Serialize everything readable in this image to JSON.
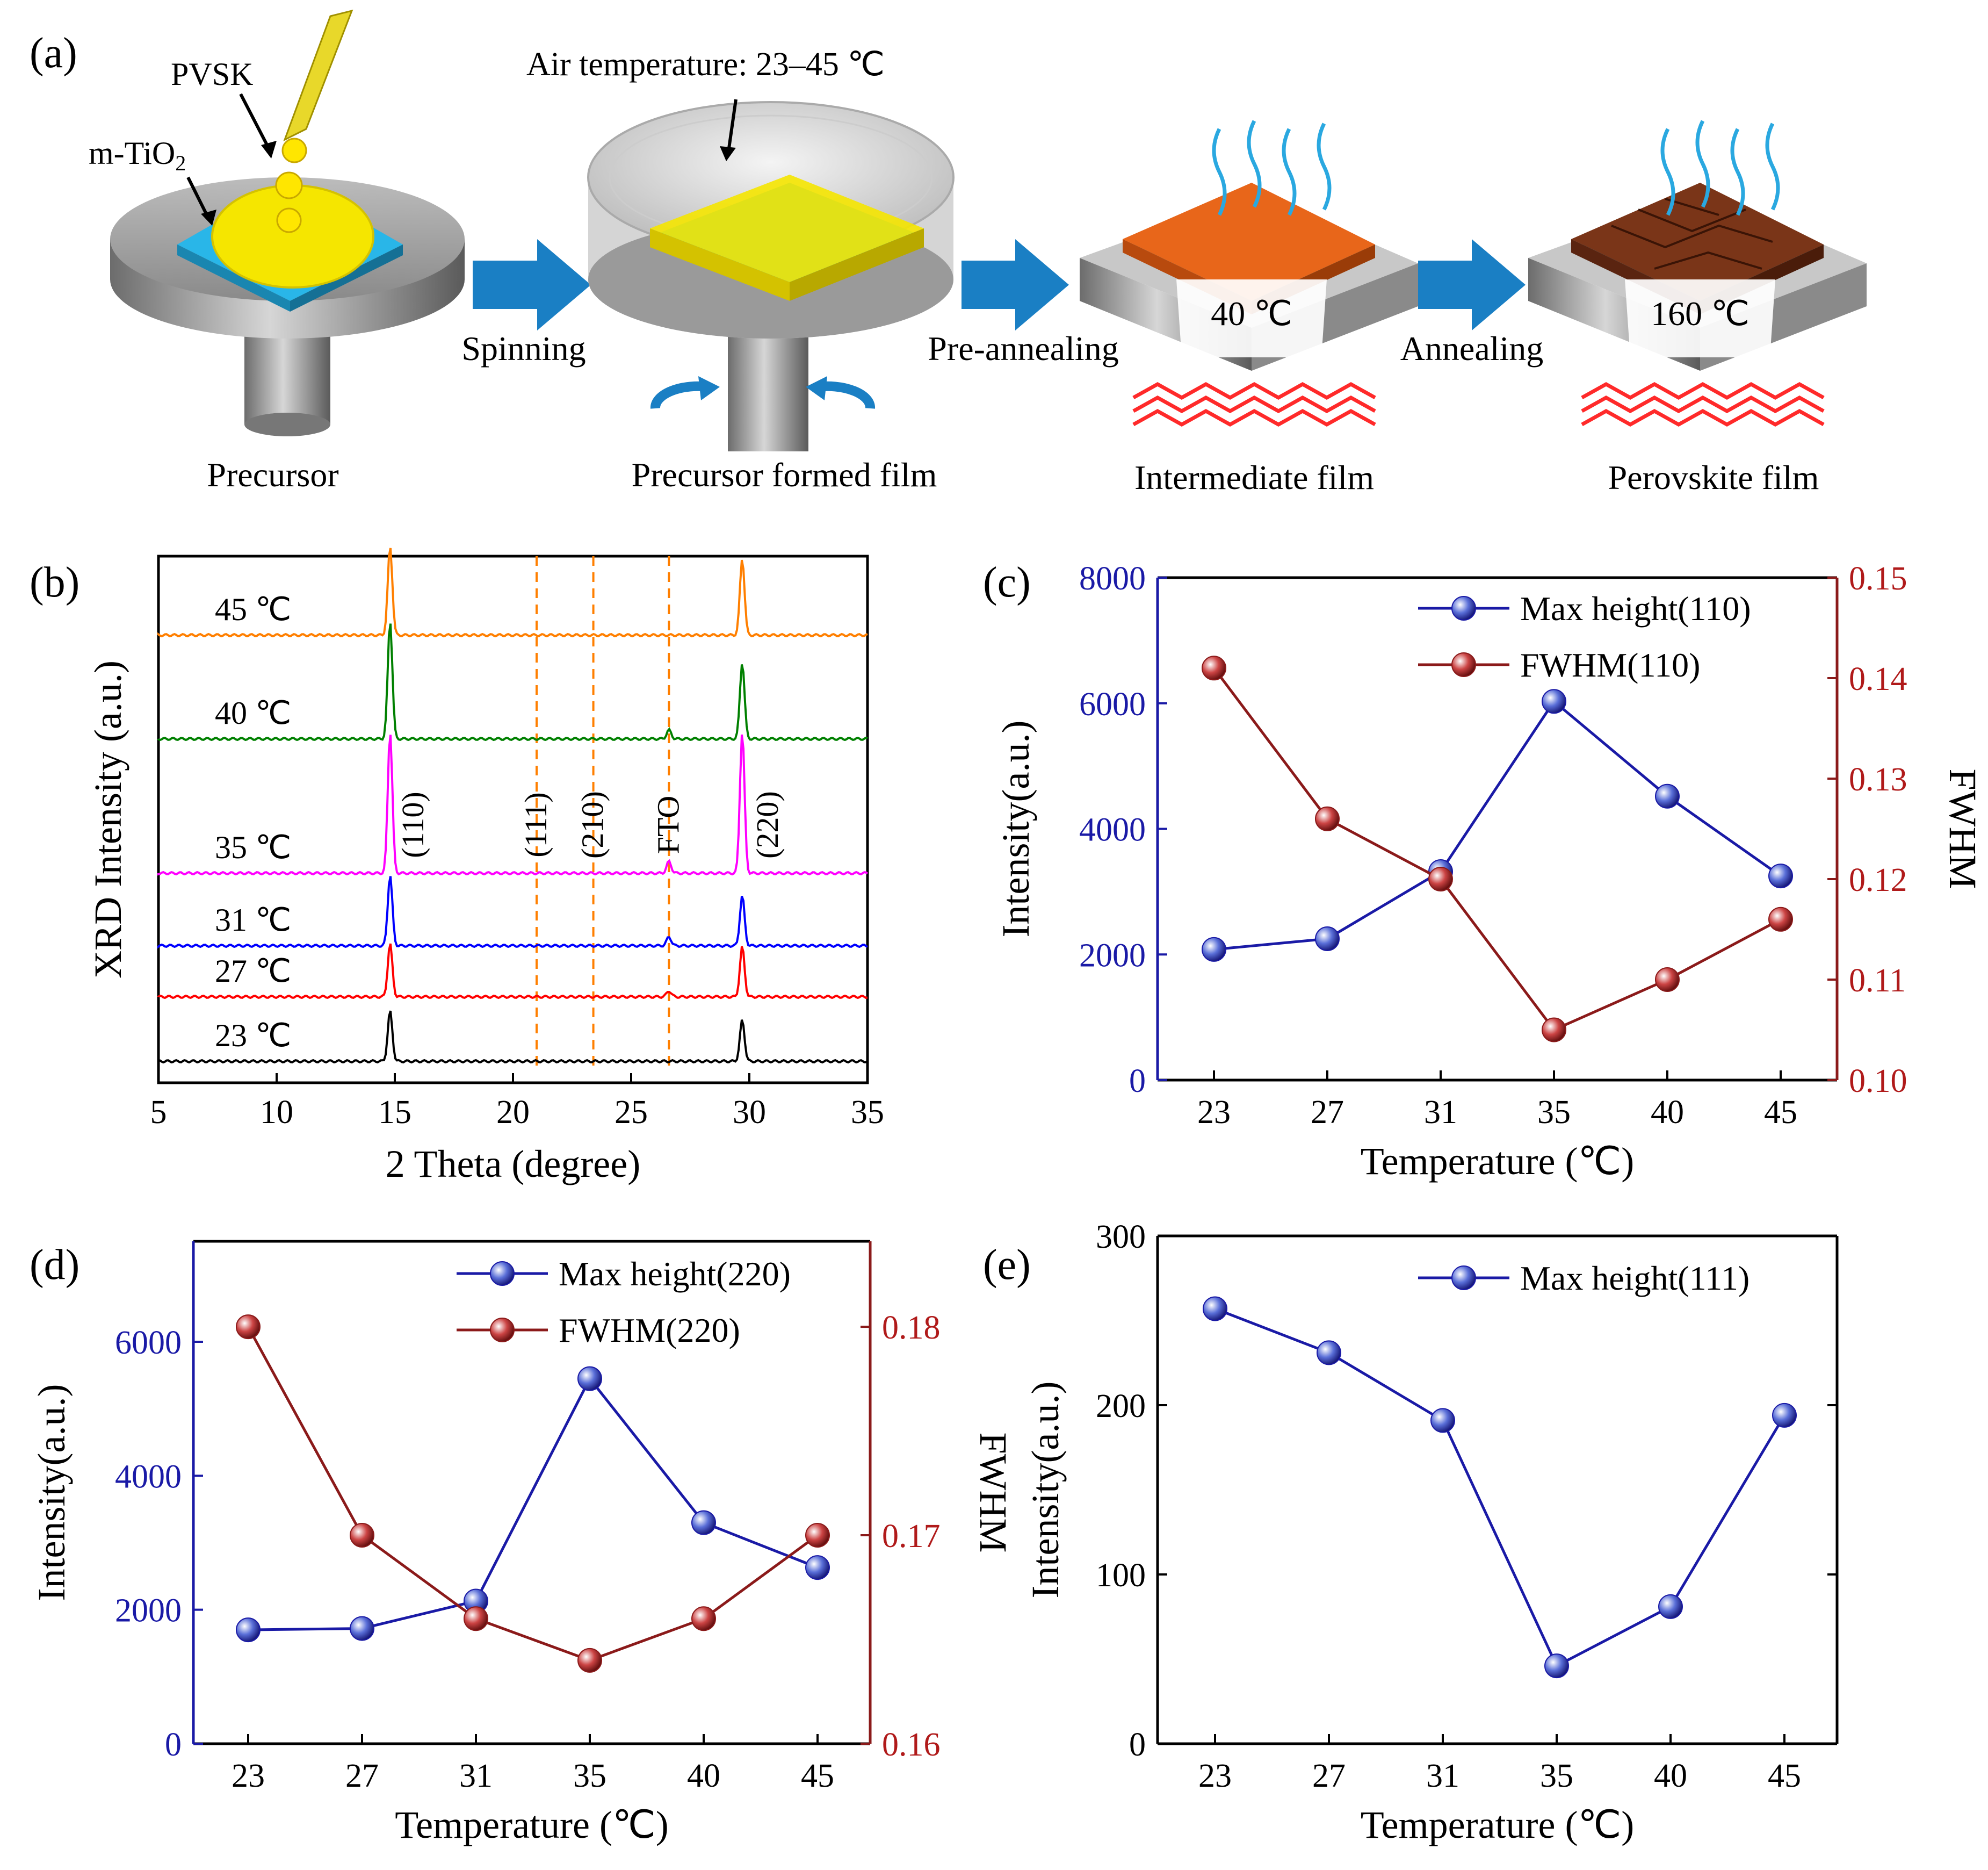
{
  "panel_a": {
    "label": "(a)",
    "pvsk": "PVSK",
    "mtio2_base": "m-TiO",
    "mtio2_sub": "2",
    "air_temp": "Air temperature: 23–45 ℃",
    "steps": [
      "Spinning",
      "Pre-annealing",
      "Annealing"
    ],
    "stages": [
      "Precursor",
      "Precursor formed film",
      "Intermediate film",
      "Perovskite film"
    ],
    "temp_intermediate": "40 ℃",
    "temp_perovskite": "160 ℃",
    "colors": {
      "substrate": "#29b6e8",
      "precursor": "#f5e600",
      "intermediate": "#e8661a",
      "perovskite": "#7a3518",
      "arrow": "#1a7fc4",
      "heat": "#ff2a2a",
      "vapor": "#2aa8e0"
    }
  },
  "chart_data": [
    {
      "id": "b",
      "type": "line",
      "label": "(b)",
      "xlabel": "2 Theta (degree)",
      "ylabel": "XRD Intensity (a.u.)",
      "xlim": [
        5,
        35
      ],
      "xticks": [
        5,
        10,
        15,
        20,
        25,
        30,
        35
      ],
      "series": [
        {
          "name": "23 ℃",
          "color": "#000000",
          "peaks": [
            {
              "x": 14.8,
              "h": 0.85
            },
            {
              "x": 29.7,
              "h": 0.7
            }
          ]
        },
        {
          "name": "27 ℃",
          "color": "#ff0000",
          "peaks": [
            {
              "x": 14.8,
              "h": 0.9
            },
            {
              "x": 29.7,
              "h": 0.85
            },
            {
              "x": 26.6,
              "h": 0.1
            }
          ]
        },
        {
          "name": "31 ℃",
          "color": "#0000ff",
          "peaks": [
            {
              "x": 14.8,
              "h": 1.2
            },
            {
              "x": 29.7,
              "h": 0.85
            },
            {
              "x": 26.6,
              "h": 0.15
            }
          ]
        },
        {
          "name": "35 ℃",
          "color": "#ff00ff",
          "peaks": [
            {
              "x": 14.8,
              "h": 2.4
            },
            {
              "x": 29.7,
              "h": 2.4
            },
            {
              "x": 26.6,
              "h": 0.2
            }
          ]
        },
        {
          "name": "40 ℃",
          "color": "#008000",
          "peaks": [
            {
              "x": 14.8,
              "h": 2.0
            },
            {
              "x": 29.7,
              "h": 1.3
            },
            {
              "x": 26.6,
              "h": 0.15
            }
          ]
        },
        {
          "name": "45 ℃",
          "color": "#ff7f00",
          "peaks": [
            {
              "x": 14.8,
              "h": 1.5
            },
            {
              "x": 29.7,
              "h": 1.3
            }
          ]
        }
      ],
      "reference_lines": [
        21.0,
        23.4,
        26.6
      ],
      "annotations": [
        {
          "text": "(110)",
          "x": 15.8
        },
        {
          "text": "(111)",
          "x": 21.0
        },
        {
          "text": "(210)",
          "x": 23.4
        },
        {
          "text": "FTO",
          "x": 26.6
        },
        {
          "text": "(220)",
          "x": 30.8
        }
      ]
    },
    {
      "id": "c",
      "type": "line",
      "label": "(c)",
      "categories": [
        "23",
        "27",
        "31",
        "35",
        "40",
        "45"
      ],
      "xlabel": "Temperature (℃)",
      "ylabel": "Intensity(a.u.)",
      "y2label": "FWHM",
      "ylim": [
        0,
        8000
      ],
      "yticks": [
        0,
        2000,
        4000,
        6000,
        8000
      ],
      "y2lim": [
        0.1,
        0.15
      ],
      "y2ticks": [
        "0.10",
        "0.11",
        "0.12",
        "0.13",
        "0.14",
        "0.15"
      ],
      "series": [
        {
          "name": "Max height(110)",
          "axis": "left",
          "color": "#1a1aa6",
          "values": [
            2080,
            2250,
            3320,
            6030,
            4520,
            3250
          ]
        },
        {
          "name": "FWHM(110)",
          "axis": "right",
          "color": "#8b1a1a",
          "values": [
            0.141,
            0.126,
            0.12,
            0.105,
            0.11,
            0.116
          ]
        }
      ]
    },
    {
      "id": "d",
      "type": "line",
      "label": "(d)",
      "categories": [
        "23",
        "27",
        "31",
        "35",
        "40",
        "45"
      ],
      "xlabel": "Temperature (℃)",
      "ylabel": "Intensity(a.u.)",
      "y2label": "FWHM",
      "ylim": [
        0,
        7500
      ],
      "yticks": [
        0,
        2000,
        4000,
        6000
      ],
      "y2lim": [
        0.16,
        0.1841
      ],
      "y2ticks": [
        "0.16",
        "0.17",
        "0.18"
      ],
      "series": [
        {
          "name": "Max height(220)",
          "axis": "left",
          "color": "#1a1aa6",
          "values": [
            1700,
            1720,
            2130,
            5450,
            3300,
            2630
          ]
        },
        {
          "name": "FWHM(220)",
          "axis": "right",
          "color": "#8b1a1a",
          "values": [
            0.18,
            0.17,
            0.166,
            0.164,
            0.166,
            0.17
          ]
        }
      ]
    },
    {
      "id": "e",
      "type": "line",
      "label": "(e)",
      "categories": [
        "23",
        "27",
        "31",
        "35",
        "40",
        "45"
      ],
      "xlabel": "Temperature (℃)",
      "ylabel": "Intensity(a.u.)",
      "ylim": [
        0,
        300
      ],
      "yticks": [
        0,
        100,
        200,
        300
      ],
      "series": [
        {
          "name": "Max height(111)",
          "axis": "left",
          "color": "#1a1aa6",
          "values": [
            257,
            231,
            191,
            46,
            81,
            194
          ]
        }
      ]
    }
  ]
}
